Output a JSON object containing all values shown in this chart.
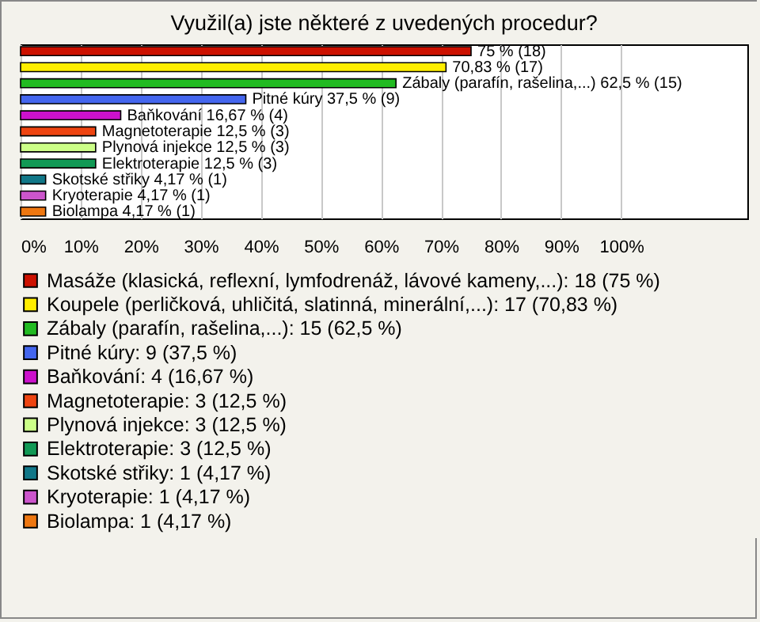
{
  "chart_data": {
    "type": "bar",
    "orientation": "horizontal",
    "title": "Využil(a) jste některé z uvedených procedur?",
    "categories": [
      null,
      null,
      null,
      null,
      null,
      null,
      null,
      null,
      null,
      null,
      null
    ],
    "series": [
      {
        "name": "Masáže (klasická, reflexní, lymfodrenáž, lávové kameny,...): 18 (75 %)",
        "color": "#cc1100",
        "values": [
          75,
          null,
          null,
          null,
          null,
          null,
          null,
          null,
          null,
          null,
          null
        ],
        "value_labels": [
          "75 % (18)",
          null,
          null,
          null,
          null,
          null,
          null,
          null,
          null,
          null,
          null
        ]
      },
      {
        "name": "Koupele (perličková, uhličitá, slatinná, minerální,...): 17 (70,83 %)",
        "color": "#ffee00",
        "values": [
          null,
          70.83,
          null,
          null,
          null,
          null,
          null,
          null,
          null,
          null,
          null
        ],
        "value_labels": [
          null,
          "70,83 % (17)",
          null,
          null,
          null,
          null,
          null,
          null,
          null,
          null,
          null
        ]
      },
      {
        "name": "Zábaly (parafín, rašelina,...): 15 (62,5 %)",
        "color": "#22bb22",
        "values": [
          null,
          null,
          62.5,
          null,
          null,
          null,
          null,
          null,
          null,
          null,
          null
        ],
        "value_labels": [
          null,
          null,
          "Zábaly (parafín, rašelina,...) 62,5 % (15)",
          null,
          null,
          null,
          null,
          null,
          null,
          null,
          null
        ]
      },
      {
        "name": "Pitné kúry: 9 (37,5 %)",
        "color": "#4466ee",
        "values": [
          null,
          null,
          null,
          37.5,
          null,
          null,
          null,
          null,
          null,
          null,
          null
        ],
        "value_labels": [
          null,
          null,
          null,
          "Pitné kúry 37,5 % (9)",
          null,
          null,
          null,
          null,
          null,
          null,
          null
        ]
      },
      {
        "name": "Baňkování: 4 (16,67 %)",
        "color": "#cc11cc",
        "values": [
          null,
          null,
          null,
          null,
          16.67,
          null,
          null,
          null,
          null,
          null,
          null
        ],
        "value_labels": [
          null,
          null,
          null,
          null,
          "Baňkování 16,67 % (4)",
          null,
          null,
          null,
          null,
          null,
          null
        ]
      },
      {
        "name": "Magnetoterapie: 3 (12,5 %)",
        "color": "#ee4411",
        "values": [
          null,
          null,
          null,
          null,
          null,
          12.5,
          null,
          null,
          null,
          null,
          null
        ],
        "value_labels": [
          null,
          null,
          null,
          null,
          null,
          "Magnetoterapie 12,5 % (3)",
          null,
          null,
          null,
          null,
          null
        ]
      },
      {
        "name": "Plynová injekce: 3 (12,5 %)",
        "color": "#ccff88",
        "values": [
          null,
          null,
          null,
          null,
          null,
          null,
          12.5,
          null,
          null,
          null,
          null
        ],
        "value_labels": [
          null,
          null,
          null,
          null,
          null,
          null,
          "Plynová injekce 12,5 % (3)",
          null,
          null,
          null,
          null
        ]
      },
      {
        "name": "Elektroterapie: 3 (12,5 %)",
        "color": "#119955",
        "values": [
          null,
          null,
          null,
          null,
          null,
          null,
          null,
          12.5,
          null,
          null,
          null
        ],
        "value_labels": [
          null,
          null,
          null,
          null,
          null,
          null,
          null,
          "Elektroterapie 12,5 % (3)",
          null,
          null,
          null
        ]
      },
      {
        "name": "Skotské střiky: 1 (4,17 %)",
        "color": "#117788",
        "values": [
          null,
          null,
          null,
          null,
          null,
          null,
          null,
          null,
          4.17,
          null,
          null
        ],
        "value_labels": [
          null,
          null,
          null,
          null,
          null,
          null,
          null,
          null,
          "Skotské střiky 4,17 % (1)",
          null,
          null
        ]
      },
      {
        "name": "Kryoterapie: 1 (4,17 %)",
        "color": "#cc55cc",
        "values": [
          null,
          null,
          null,
          null,
          null,
          null,
          null,
          null,
          null,
          4.17,
          null
        ],
        "value_labels": [
          null,
          null,
          null,
          null,
          null,
          null,
          null,
          null,
          null,
          "Kryoterapie 4,17 % (1)",
          null
        ]
      },
      {
        "name": "Biolampa: 1 (4,17 %)",
        "color": "#ee7711",
        "values": [
          null,
          null,
          null,
          null,
          null,
          null,
          null,
          null,
          null,
          null,
          4.17
        ],
        "value_labels": [
          null,
          null,
          null,
          null,
          null,
          null,
          null,
          null,
          null,
          null,
          "Biolampa 4,17 % (1)"
        ]
      }
    ],
    "xlim": [
      0,
      121
    ],
    "xticks": [
      {
        "value": 0,
        "label": "0%"
      },
      {
        "value": 10,
        "label": "10%"
      },
      {
        "value": 20,
        "label": "20%"
      },
      {
        "value": 30,
        "label": "30%"
      },
      {
        "value": 40,
        "label": "40%"
      },
      {
        "value": 50,
        "label": "50%"
      },
      {
        "value": 60,
        "label": "60%"
      },
      {
        "value": 70,
        "label": "70%"
      },
      {
        "value": 80,
        "label": "80%"
      },
      {
        "value": 90,
        "label": "90%"
      },
      {
        "value": 100,
        "label": "100%"
      }
    ],
    "tick_labels": "x",
    "grid": "x",
    "legend": "bottom"
  }
}
